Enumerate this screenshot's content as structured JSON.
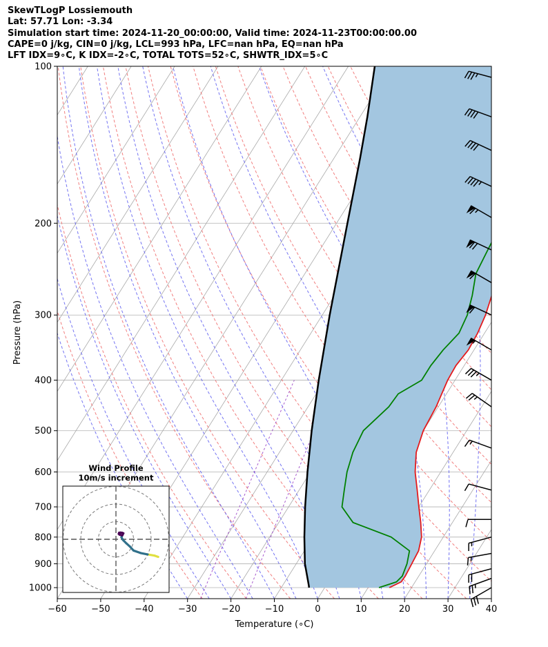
{
  "header": {
    "lines": [
      "SkewTLogP Lossiemouth",
      "Lat: 57.71   Lon: -3.34",
      "Simulation start time: 2024-11-20_00:00:00, Valid time: 2024-11-23T00:00:00.00",
      "CAPE=0 j/kg, CIN=0 j/kg, LCL=993 hPa, LFC=nan hPa, EQ=nan hPa",
      "LFT IDX=9∘C, K IDX=-2∘C, TOTAL TOTS=52∘C, SHWTR_IDX=5∘C"
    ]
  },
  "chart_data": {
    "type": "line",
    "xlabel": "Temperature (∘C)",
    "ylabel": "Pressure (hPa)",
    "xlim": [
      -60,
      40
    ],
    "ylim": [
      1050,
      100
    ],
    "y_scale": "log",
    "x_ticks": [
      "−60",
      "−50",
      "−40",
      "−30",
      "−20",
      "−10",
      "0",
      "10",
      "20",
      "30",
      "40"
    ],
    "y_ticks": [
      "100",
      "200",
      "300",
      "400",
      "500",
      "600",
      "700",
      "800",
      "900",
      "1000"
    ],
    "grid": true,
    "colors": {
      "temperature": "#e41a1c",
      "dewpoint": "#008000",
      "parcel": "#000000",
      "shading": "#a3c6e0",
      "dry_adiabats": "#f07070",
      "moist_adiabats": "#5a5af0",
      "mixing_ratio": "#9030c0",
      "isotherms": "#a8a8a8",
      "hodograph_low": "#e0e040",
      "hodograph_mid": "#30708a",
      "hodograph_high": "#4b0055"
    },
    "series": [
      {
        "key": "temperature",
        "points": [
          [
            3.8,
            100
          ],
          [
            2.4,
            110
          ],
          [
            1.9,
            120
          ],
          [
            0.7,
            130
          ],
          [
            -0.8,
            140
          ],
          [
            -1.4,
            150
          ],
          [
            -2.5,
            160
          ],
          [
            -3.9,
            170
          ],
          [
            -5.3,
            180
          ],
          [
            -6.1,
            190
          ],
          [
            -6.6,
            200
          ],
          [
            -6.0,
            225
          ],
          [
            -4.9,
            250
          ],
          [
            -3.8,
            275
          ],
          [
            -2.4,
            300
          ],
          [
            -1.6,
            325
          ],
          [
            -1.3,
            350
          ],
          [
            -1.9,
            375
          ],
          [
            -1.7,
            400
          ],
          [
            -0.5,
            450
          ],
          [
            0.0,
            500
          ],
          [
            1.5,
            550
          ],
          [
            4.1,
            600
          ],
          [
            7.2,
            650
          ],
          [
            10.0,
            700
          ],
          [
            12.7,
            750
          ],
          [
            15.0,
            800
          ],
          [
            16.3,
            850
          ],
          [
            16.6,
            900
          ],
          [
            16.9,
            950
          ],
          [
            16.8,
            975
          ],
          [
            14.9,
            1000
          ]
        ]
      },
      {
        "key": "dewpoint",
        "points": [
          [
            -1.3,
            100
          ],
          [
            -3.5,
            110
          ],
          [
            -5.6,
            120
          ],
          [
            -7.8,
            130
          ],
          [
            -9.9,
            140
          ],
          [
            -12.1,
            150
          ],
          [
            -13.1,
            160
          ],
          [
            -11.8,
            170
          ],
          [
            -11.4,
            180
          ],
          [
            -11.6,
            190
          ],
          [
            -12.0,
            200
          ],
          [
            -11.3,
            225
          ],
          [
            -10.6,
            250
          ],
          [
            -8.3,
            275
          ],
          [
            -6.6,
            300
          ],
          [
            -5.9,
            325
          ],
          [
            -7.1,
            350
          ],
          [
            -7.7,
            375
          ],
          [
            -7.7,
            400
          ],
          [
            -11.1,
            425
          ],
          [
            -11.4,
            450
          ],
          [
            -13.8,
            500
          ],
          [
            -13.1,
            550
          ],
          [
            -11.6,
            600
          ],
          [
            -9.6,
            650
          ],
          [
            -7.7,
            700
          ],
          [
            -2.9,
            750
          ],
          [
            8.0,
            800
          ],
          [
            14.2,
            850
          ],
          [
            15.5,
            900
          ],
          [
            16.2,
            950
          ],
          [
            15.7,
            975
          ],
          [
            12.5,
            1000
          ]
        ]
      },
      {
        "key": "parcel",
        "points": [
          [
            -63.9,
            100
          ],
          [
            -58.3,
            125
          ],
          [
            -54.0,
            150
          ],
          [
            -47.5,
            200
          ],
          [
            -38.3,
            300
          ],
          [
            -31.4,
            400
          ],
          [
            -25.7,
            500
          ],
          [
            -20.7,
            600
          ],
          [
            -16.2,
            700
          ],
          [
            -12.0,
            800
          ],
          [
            -8.0,
            900
          ],
          [
            -4.0,
            990
          ],
          [
            -3.6,
            1000
          ]
        ]
      }
    ],
    "shaded_region": "between temperature and parcel",
    "wind_barbs": [
      {
        "p": 105,
        "speed_kt": 35,
        "dir_deg": 285
      },
      {
        "p": 125,
        "speed_kt": 40,
        "dir_deg": 290
      },
      {
        "p": 145,
        "speed_kt": 40,
        "dir_deg": 295
      },
      {
        "p": 170,
        "speed_kt": 45,
        "dir_deg": 295
      },
      {
        "p": 195,
        "speed_kt": 65,
        "dir_deg": 300
      },
      {
        "p": 225,
        "speed_kt": 70,
        "dir_deg": 295
      },
      {
        "p": 260,
        "speed_kt": 60,
        "dir_deg": 300
      },
      {
        "p": 300,
        "speed_kt": 60,
        "dir_deg": 295
      },
      {
        "p": 350,
        "speed_kt": 55,
        "dir_deg": 300
      },
      {
        "p": 400,
        "speed_kt": 35,
        "dir_deg": 300
      },
      {
        "p": 450,
        "speed_kt": 25,
        "dir_deg": 305
      },
      {
        "p": 540,
        "speed_kt": 15,
        "dir_deg": 290
      },
      {
        "p": 650,
        "speed_kt": 10,
        "dir_deg": 285
      },
      {
        "p": 740,
        "speed_kt": 10,
        "dir_deg": 270
      },
      {
        "p": 800,
        "speed_kt": 15,
        "dir_deg": 255
      },
      {
        "p": 860,
        "speed_kt": 15,
        "dir_deg": 260
      },
      {
        "p": 920,
        "speed_kt": 20,
        "dir_deg": 255
      },
      {
        "p": 960,
        "speed_kt": 25,
        "dir_deg": 250
      },
      {
        "p": 1000,
        "speed_kt": 30,
        "dir_deg": 240
      }
    ],
    "hodograph": {
      "title_lines": [
        "Wind Profile",
        "10m/s increment"
      ],
      "ring_increment_ms": 10,
      "rings": 3,
      "trace": [
        [
          24,
          -10
        ],
        [
          22,
          -9.3
        ],
        [
          18,
          -8.6
        ],
        [
          14,
          -7.8
        ],
        [
          10,
          -6.4
        ],
        [
          8,
          -4.2
        ],
        [
          6,
          -2.4
        ],
        [
          4,
          -0.4
        ],
        [
          3.1,
          1.2
        ],
        [
          3.6,
          2.2
        ],
        [
          4.2,
          3.4
        ],
        [
          3.5,
          3.7
        ],
        [
          2.5,
          3.8
        ],
        [
          1.8,
          3.7
        ],
        [
          1.6,
          3.1
        ],
        [
          2.1,
          2.6
        ],
        [
          3.5,
          2.3
        ]
      ]
    }
  }
}
